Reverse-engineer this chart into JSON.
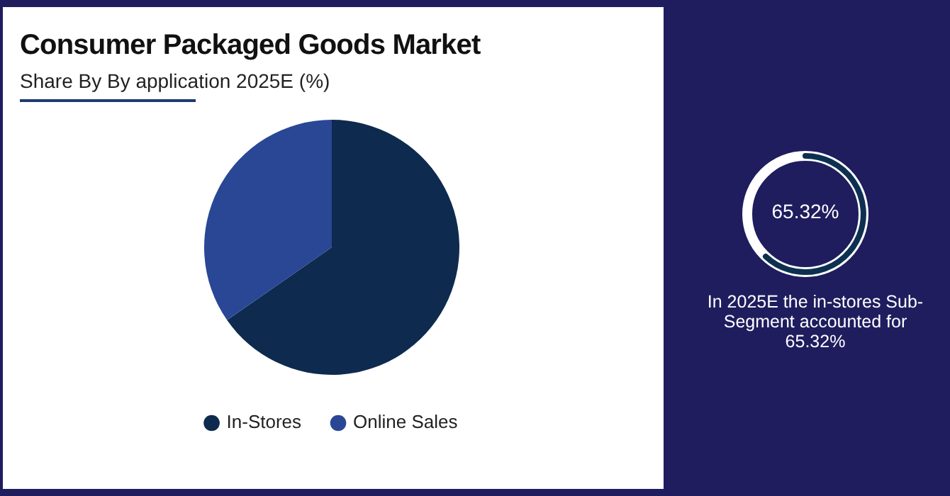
{
  "chart_data": {
    "type": "pie",
    "title": "Consumer Packaged Goods Market",
    "subtitle": "Share By By application 2025E (%)",
    "categories": [
      "In-Stores",
      "Online Sales"
    ],
    "values": [
      65.32,
      34.68
    ],
    "colors": [
      "#0e2a4e",
      "#2a4796"
    ],
    "legend": "bottom",
    "annotations": [
      "65.32%",
      "In 2025E the in-stores Sub-Segment accounted for 65.32%"
    ]
  }
}
